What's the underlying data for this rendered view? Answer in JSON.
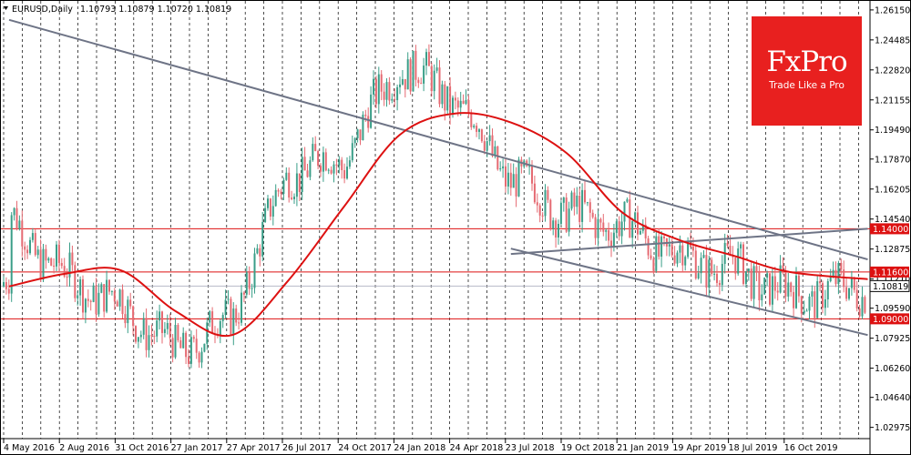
{
  "header": {
    "symbol": "EURUSD,Daily",
    "quote": "1.10793 1.10879 1.10720 1.10819"
  },
  "brand": {
    "name": "FxPro",
    "tagline": "Trade Like a Pro",
    "color": "#e8201f"
  },
  "colors": {
    "bull_candle": "#3a9e88",
    "bear_candle": "#e56a72",
    "moving_average": "#dd1111",
    "trendline": "#6e7486",
    "level_line": "#dd1111",
    "current_price_line": "#b7bac8",
    "grid": "#000000"
  },
  "chart_data": {
    "type": "line",
    "title": "EURUSD,Daily",
    "ohlc_last": {
      "open": 1.10793,
      "high": 1.10879,
      "low": 1.1072,
      "close": 1.10819
    },
    "ylim": [
      1.0235,
      1.2665
    ],
    "y_ticks": [
      "1.26150",
      "1.24485",
      "1.22820",
      "1.21155",
      "1.19490",
      "1.17870",
      "1.16205",
      "1.14540",
      "1.12875",
      "1.11210",
      "1.09590",
      "1.07925",
      "1.06260",
      "1.04640",
      "1.02975"
    ],
    "x_ticks": [
      "4 May 2016",
      "2 Aug 2016",
      "31 Oct 2016",
      "27 Jan 2017",
      "27 Apr 2017",
      "26 Jul 2017",
      "24 Oct 2017",
      "24 Jan 2018",
      "24 Apr 2018",
      "23 Jul 2018",
      "19 Oct 2018",
      "21 Jan 2019",
      "19 Apr 2019",
      "18 Jul 2019",
      "16 Oct 2019"
    ],
    "grid": true,
    "horizontal_levels": [
      {
        "label": "1.14000",
        "value": 1.14
      },
      {
        "label": "1.11600",
        "value": 1.116
      },
      {
        "label": "1.09000",
        "value": 1.09
      }
    ],
    "current_price": {
      "label": "1.10819",
      "value": 1.10819
    },
    "price_path": [
      [
        "4 May 2016",
        1.145
      ],
      [
        "2 Aug 2016",
        1.113
      ],
      [
        "31 Oct 2016",
        1.098
      ],
      [
        "27 Jan 2017",
        1.072
      ],
      [
        "27 Apr 2017",
        1.09
      ],
      [
        "26 Jul 2017",
        1.172
      ],
      [
        "24 Oct 2017",
        1.178
      ],
      [
        "24 Jan 2018",
        1.232
      ],
      [
        "24 Apr 2018",
        1.212
      ],
      [
        "23 Jul 2018",
        1.168
      ],
      [
        "19 Oct 2018",
        1.148
      ],
      [
        "21 Jan 2019",
        1.142
      ],
      [
        "19 Apr 2019",
        1.125
      ],
      [
        "18 Jul 2019",
        1.119
      ],
      [
        "16 Oct 2019",
        1.103
      ],
      [
        "Nov 2019",
        1.108
      ]
    ],
    "series": [
      {
        "points": [
          [
            "4 May 2016",
            1.108
          ],
          [
            "2 Aug 2016",
            1.115
          ],
          [
            "31 Oct 2016",
            1.117
          ],
          [
            "27 Jan 2017",
            1.094
          ],
          [
            "27 Apr 2017",
            1.081
          ],
          [
            "26 Jul 2017",
            1.111
          ],
          [
            "24 Oct 2017",
            1.152
          ],
          [
            "24 Jan 2018",
            1.192
          ],
          [
            "24 Apr 2018",
            1.204
          ],
          [
            "23 Jul 2018",
            1.199
          ],
          [
            "19 Oct 2018",
            1.182
          ],
          [
            "21 Jan 2019",
            1.149
          ],
          [
            "19 Apr 2019",
            1.134
          ],
          [
            "18 Jul 2019",
            1.125
          ],
          [
            "16 Oct 2019",
            1.116
          ],
          [
            "Nov 2019",
            1.112
          ]
        ]
      }
    ],
    "trendlines": [
      {
        "from": [
          "4 May 2016",
          1.256
        ],
        "to": [
          "Nov 2019",
          1.123
        ]
      },
      {
        "from": [
          "23 Jul 2018",
          1.126
        ],
        "to": [
          "Nov 2019",
          1.14
        ]
      },
      {
        "from": [
          "23 Jul 2018",
          1.129
        ],
        "to": [
          "Nov 2019",
          1.081
        ]
      }
    ]
  }
}
